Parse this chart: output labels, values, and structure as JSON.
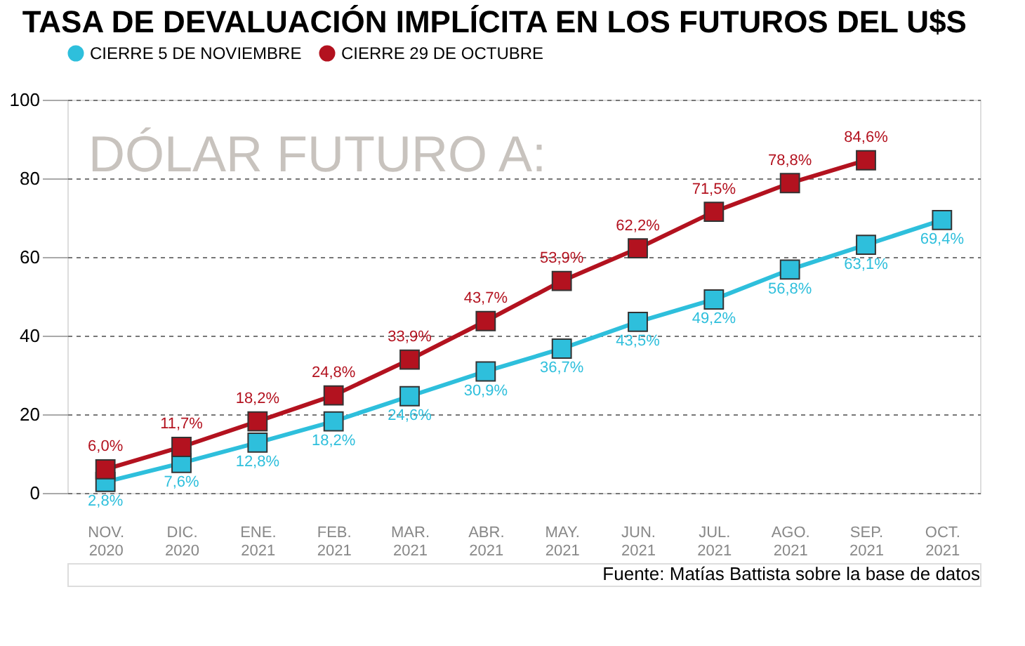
{
  "chart_data": {
    "type": "line",
    "title": "TASA DE DEVALUACIÓN IMPLÍCITA EN LOS FUTUROS DEL U$S",
    "categories": [
      "NOV. 2020",
      "DIC. 2020",
      "ENE. 2021",
      "FEB. 2021",
      "MAR. 2021",
      "ABR. 2021",
      "MAY. 2021",
      "JUN. 2021",
      "JUL. 2021",
      "AGO. 2021",
      "SEP. 2021",
      "OCT. 2021"
    ],
    "series": [
      {
        "name": "CIERRE 5 DE NOVIEMBRE",
        "color": "#2ebfdc",
        "values": [
          2.8,
          7.6,
          12.8,
          18.2,
          24.6,
          30.9,
          36.7,
          43.5,
          49.2,
          56.8,
          63.1,
          69.4
        ],
        "value_labels": [
          "2,8%",
          "7,6%",
          "12,8%",
          "18,2%",
          "24,6%",
          "30,9%",
          "36,7%",
          "43,5%",
          "49,2%",
          "56,8%",
          "63,1%",
          "69,4%"
        ]
      },
      {
        "name": "CIERRE 29 DE OCTUBRE",
        "color": "#b3121f",
        "values": [
          6.0,
          11.7,
          18.2,
          24.8,
          33.9,
          43.7,
          53.9,
          62.2,
          71.5,
          78.8,
          84.6,
          null
        ],
        "value_labels": [
          "6,0%",
          "11,7%",
          "18,2%",
          "24,8%",
          "33,9%",
          "43,7%",
          "53,9%",
          "62,2%",
          "71,5%",
          "78,8%",
          "84,6%",
          null
        ]
      }
    ],
    "ylim": [
      0,
      100
    ],
    "yticks": [
      0,
      20,
      40,
      60,
      80,
      100
    ],
    "grid": "y",
    "legend": "top",
    "marker": "square",
    "line_style": "solid",
    "annotations": [
      "DÓLAR FUTURO A:",
      "Fuente: Matías Battista sobre la base de datos"
    ]
  }
}
